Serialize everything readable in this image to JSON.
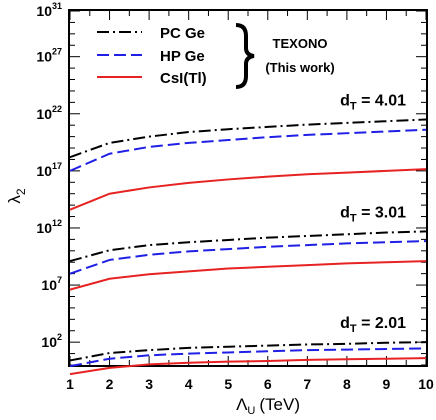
{
  "chart_data": {
    "type": "line",
    "xlabel": "Λ",
    "xlabel_sub": "U",
    "xlabel_unit": "(TeV)",
    "ylabel": "λ",
    "ylabel_sub": "2",
    "xlim": [
      1,
      10
    ],
    "y_scale": "log",
    "ylim_log10": [
      0,
      31
    ],
    "x_ticks": [
      1,
      2,
      3,
      4,
      5,
      6,
      7,
      8,
      9,
      10
    ],
    "y_ticks": [
      {
        "base": "10",
        "exp": "2",
        "log10": 2
      },
      {
        "base": "10",
        "exp": "7",
        "log10": 7
      },
      {
        "base": "10",
        "exp": "12",
        "log10": 12
      },
      {
        "base": "10",
        "exp": "17",
        "log10": 17
      },
      {
        "base": "10",
        "exp": "22",
        "log10": 22
      },
      {
        "base": "10",
        "exp": "27",
        "log10": 27
      },
      {
        "base": "10",
        "exp": "31",
        "log10": 31
      }
    ],
    "legend": {
      "placement": "top-left",
      "group_label": "TEXONO",
      "group_sublabel": "(This work)"
    },
    "series": [
      {
        "name": "PC Ge",
        "color": "#000000",
        "dash": "dashdot"
      },
      {
        "name": "HP Ge",
        "color": "#1f1fe6",
        "dash": "dashed"
      },
      {
        "name": "CsI(Tl)",
        "color": "#e62222",
        "dash": "solid"
      }
    ],
    "x": [
      1,
      2,
      3,
      4,
      5,
      6,
      7,
      8,
      9,
      10
    ],
    "groups": [
      {
        "label": "d",
        "label_sub": "T",
        "label_value": "= 4.01",
        "series_log10": [
          [
            18.2,
            19.45,
            20.0,
            20.4,
            20.65,
            20.85,
            21.05,
            21.2,
            21.35,
            21.5
          ],
          [
            17.0,
            18.5,
            19.1,
            19.45,
            19.7,
            19.95,
            20.15,
            20.3,
            20.45,
            20.6
          ],
          [
            13.6,
            15.0,
            15.55,
            15.95,
            16.25,
            16.5,
            16.7,
            16.85,
            17.0,
            17.15
          ]
        ]
      },
      {
        "label": "d",
        "label_sub": "T",
        "label_value": "= 3.01",
        "series_log10": [
          [
            9.1,
            10.05,
            10.5,
            10.75,
            10.95,
            11.15,
            11.3,
            11.45,
            11.6,
            11.7
          ],
          [
            8.0,
            9.2,
            9.65,
            9.95,
            10.15,
            10.35,
            10.5,
            10.65,
            10.75,
            10.85
          ],
          [
            6.6,
            7.55,
            7.95,
            8.2,
            8.45,
            8.6,
            8.75,
            8.9,
            9.0,
            9.1
          ]
        ]
      },
      {
        "label": "d",
        "label_sub": "T",
        "label_value": "= 2.01",
        "series_log10": [
          [
            0.4,
            1.05,
            1.3,
            1.5,
            1.6,
            1.7,
            1.8,
            1.85,
            1.95,
            2.0
          ],
          [
            -0.1,
            0.55,
            0.85,
            1.0,
            1.1,
            1.2,
            1.3,
            1.35,
            1.4,
            1.45
          ],
          [
            -0.8,
            -0.25,
            0.05,
            0.2,
            0.3,
            0.35,
            0.45,
            0.5,
            0.55,
            0.6
          ]
        ]
      }
    ]
  }
}
